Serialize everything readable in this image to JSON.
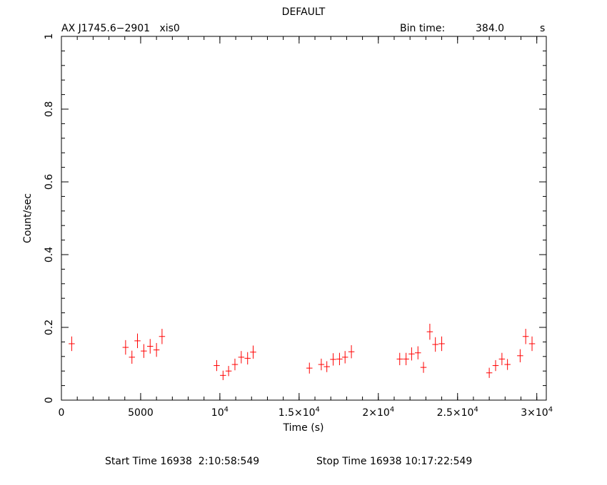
{
  "header": {
    "title": "DEFAULT",
    "source": "AX J1745.6−2901   xis0",
    "bin_label": "Bin time:",
    "bin_value": "384.0",
    "bin_unit": "s"
  },
  "footer": {
    "start": "Start Time 16938  2:10:58:549",
    "stop": "Stop Time 16938 10:17:22:549"
  },
  "chart_data": {
    "type": "scatter",
    "title": "DEFAULT",
    "xlabel": "Time (s)",
    "ylabel": "Count/sec",
    "xlim": [
      0,
      30600
    ],
    "ylim": [
      0,
      1
    ],
    "xticks": [
      {
        "value": 0,
        "label": "0"
      },
      {
        "value": 5000,
        "label": "5000"
      },
      {
        "value": 10000,
        "label": "10^4"
      },
      {
        "value": 15000,
        "label": "1.5×10^4"
      },
      {
        "value": 20000,
        "label": "2×10^4"
      },
      {
        "value": 25000,
        "label": "2.5×10^4"
      },
      {
        "value": 30000,
        "label": "3×10^4"
      }
    ],
    "yticks": [
      {
        "value": 0,
        "label": "0"
      },
      {
        "value": 0.2,
        "label": "0.2"
      },
      {
        "value": 0.4,
        "label": "0.4"
      },
      {
        "value": 0.6,
        "label": "0.6"
      },
      {
        "value": 0.8,
        "label": "0.8"
      },
      {
        "value": 1,
        "label": "1"
      }
    ],
    "x_minor_step": 1000,
    "y_minor_step": 0.04,
    "xerr": 192,
    "marker_color": "#ff0000",
    "series": [
      {
        "x": [
          650,
          4050,
          4450,
          4800,
          5200,
          5600,
          6000,
          6350,
          9800,
          10200,
          10550,
          10950,
          11350,
          11750,
          12100,
          15650,
          16400,
          16750,
          17150,
          17550,
          17900,
          18300,
          21350,
          21750,
          22100,
          22500,
          22850,
          23250,
          23600,
          24000,
          27000,
          27400,
          27800,
          28150,
          28950,
          29300,
          29700
        ],
        "y": [
          0.155,
          0.145,
          0.118,
          0.163,
          0.135,
          0.148,
          0.138,
          0.175,
          0.095,
          0.068,
          0.08,
          0.098,
          0.118,
          0.115,
          0.132,
          0.088,
          0.098,
          0.092,
          0.112,
          0.113,
          0.118,
          0.133,
          0.113,
          0.113,
          0.127,
          0.13,
          0.09,
          0.188,
          0.153,
          0.155,
          0.075,
          0.095,
          0.113,
          0.098,
          0.122,
          0.175,
          0.155
        ],
        "yerr": [
          0.02,
          0.02,
          0.018,
          0.02,
          0.019,
          0.02,
          0.019,
          0.021,
          0.015,
          0.013,
          0.014,
          0.016,
          0.017,
          0.017,
          0.018,
          0.015,
          0.016,
          0.015,
          0.017,
          0.017,
          0.017,
          0.018,
          0.017,
          0.017,
          0.018,
          0.018,
          0.015,
          0.022,
          0.02,
          0.02,
          0.014,
          0.015,
          0.017,
          0.015,
          0.018,
          0.021,
          0.02
        ]
      }
    ]
  }
}
